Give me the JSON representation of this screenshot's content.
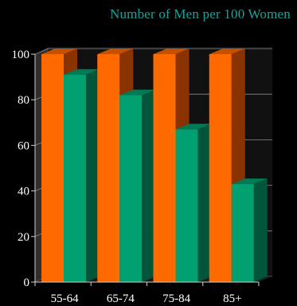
{
  "chart_data": {
    "type": "bar",
    "title": "Number of Men per 100 Women",
    "categories": [
      "55-64",
      "65-74",
      "75-84",
      "85+"
    ],
    "series": [
      {
        "values": [
          100,
          100,
          100,
          100
        ]
      },
      {
        "values": [
          91,
          82,
          67,
          43
        ]
      }
    ],
    "ylim": [
      0,
      100
    ],
    "yticks": [
      0,
      20,
      40,
      60,
      80,
      100
    ],
    "xlabel": "",
    "ylabel": "",
    "grid": true,
    "style": "3d"
  },
  "colors": {
    "background": "#000000",
    "title": "#1aa39a",
    "series_front": [
      "#ff6a00",
      "#00a070"
    ],
    "series_side": [
      "#8a3200",
      "#00553a"
    ],
    "series_top": [
      "#c45000",
      "#007a55"
    ],
    "wall": "#111111",
    "grid": "#8a8a8a",
    "text": "#ffffff"
  }
}
